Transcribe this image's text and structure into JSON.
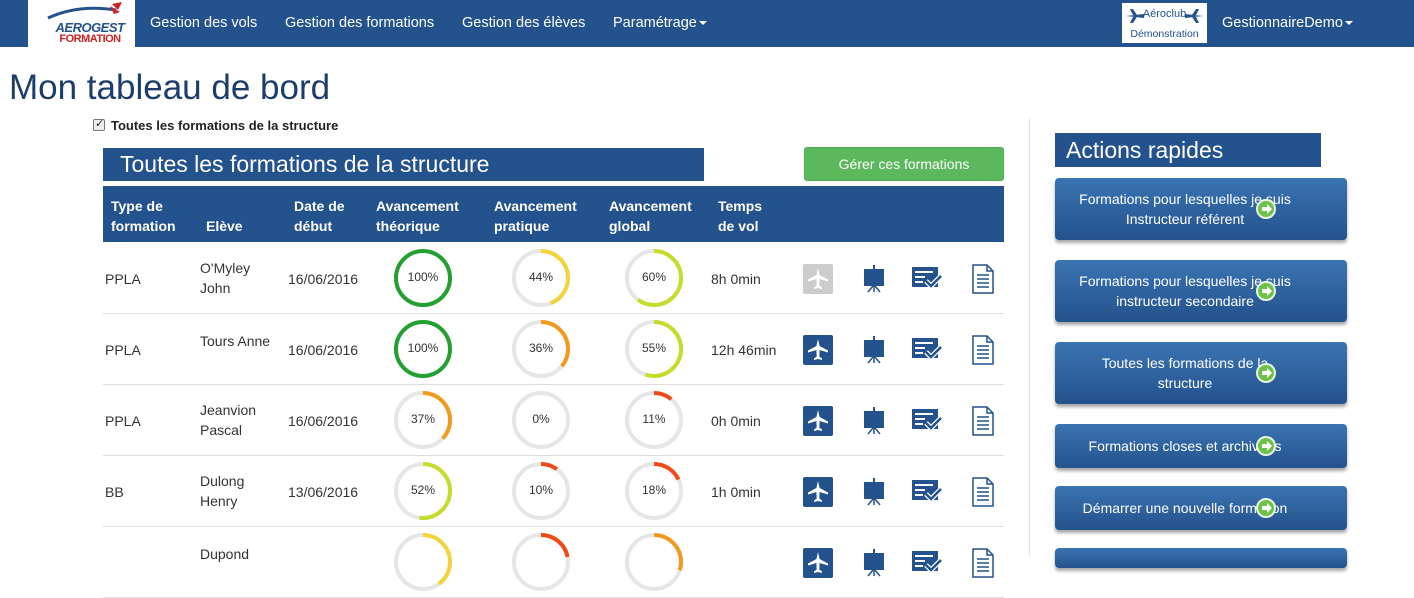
{
  "nav": {
    "logo": {
      "line1": "AEROGEST",
      "line2": "FORMATION"
    },
    "items": [
      "Gestion des vols",
      "Gestion des formations",
      "Gestion des élèves",
      "Paramétrage"
    ],
    "club": {
      "line1": "Aéroclub",
      "line2": "Démonstration"
    },
    "user": "GestionnaireDemo"
  },
  "page": {
    "title": "Mon tableau de bord",
    "checkbox_label": "Toutes les formations de la structure",
    "section_title": "Toutes les formations de la structure",
    "manage_button": "Gérer ces formations"
  },
  "table": {
    "headers": {
      "type": [
        "Type de",
        "formation"
      ],
      "eleve": "Elève",
      "date": [
        "Date de",
        "début"
      ],
      "theorique": [
        "Avancement",
        "théorique"
      ],
      "pratique": [
        "Avancement",
        "pratique"
      ],
      "global": [
        "Avancement",
        "global"
      ],
      "temps": [
        "Temps",
        "de vol"
      ]
    },
    "rows": [
      {
        "type": "PPLA",
        "eleve": [
          "O'Myley",
          "John"
        ],
        "date": "16/06/2016",
        "theo": 100,
        "prat": 44,
        "glob": 60,
        "temps": "8h 0min",
        "theo_label": "100%",
        "prat_label": "44%",
        "glob_label": "60%",
        "flight_enabled": false
      },
      {
        "type": "PPLA",
        "eleve": [
          "Tours Anne"
        ],
        "date": "16/06/2016",
        "theo": 100,
        "prat": 36,
        "glob": 55,
        "temps": "12h 46min",
        "theo_label": "100%",
        "prat_label": "36%",
        "glob_label": "55%",
        "flight_enabled": true
      },
      {
        "type": "PPLA",
        "eleve": [
          "Jeanvion",
          "Pascal"
        ],
        "date": "16/06/2016",
        "theo": 37,
        "prat": 0,
        "glob": 11,
        "temps": "0h 0min",
        "theo_label": "37%",
        "prat_label": "0%",
        "glob_label": "11%",
        "flight_enabled": true
      },
      {
        "type": "BB",
        "eleve": [
          "Dulong",
          "Henry"
        ],
        "date": "13/06/2016",
        "theo": 52,
        "prat": 10,
        "glob": 18,
        "temps": "1h 0min",
        "theo_label": "52%",
        "prat_label": "10%",
        "glob_label": "18%",
        "flight_enabled": true
      },
      {
        "type": "",
        "eleve": [
          "Dupond"
        ],
        "date": "",
        "theo": 40,
        "prat": 22,
        "glob": 30,
        "temps": "",
        "theo_label": "",
        "prat_label": "",
        "glob_label": "",
        "flight_enabled": true
      }
    ]
  },
  "aside": {
    "title": "Actions rapides",
    "buttons": [
      [
        "Formations pour lesquelles je suis",
        "Instructeur référent"
      ],
      [
        "Formations pour lesquelles je suis",
        "instructeur secondaire"
      ],
      [
        "Toutes les formations de la",
        "structure"
      ],
      [
        "Formations closes et archivées"
      ],
      [
        "Démarrer une nouvelle formation"
      ]
    ]
  },
  "colors": {
    "primary": "#24528c",
    "green_button": "#5cb85c",
    "ring_full": "#22a032",
    "ring_high": "#c5dc2a",
    "ring_mid": "#f2d43a",
    "ring_low": "#f29a1e",
    "ring_vlow": "#ee4b1a",
    "ring_track": "#e6e6e6"
  }
}
